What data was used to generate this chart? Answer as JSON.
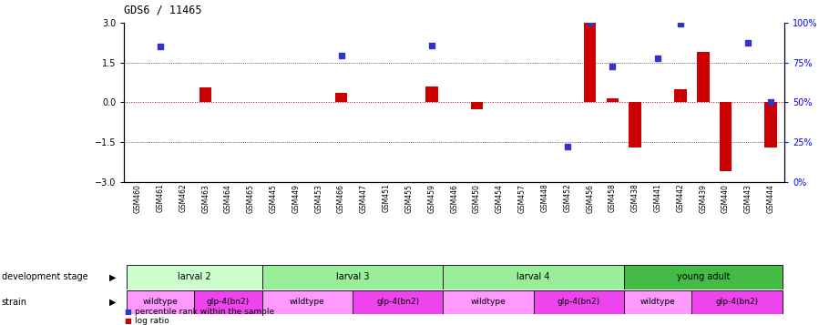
{
  "title": "GDS6 / 11465",
  "samples": [
    "GSM460",
    "GSM461",
    "GSM462",
    "GSM463",
    "GSM464",
    "GSM465",
    "GSM445",
    "GSM449",
    "GSM453",
    "GSM466",
    "GSM447",
    "GSM451",
    "GSM455",
    "GSM459",
    "GSM446",
    "GSM450",
    "GSM454",
    "GSM457",
    "GSM448",
    "GSM452",
    "GSM456",
    "GSM458",
    "GSM438",
    "GSM441",
    "GSM442",
    "GSM439",
    "GSM440",
    "GSM443",
    "GSM444"
  ],
  "log_ratio": [
    0,
    0,
    0,
    0.55,
    0,
    0,
    0,
    0,
    0,
    0.35,
    0,
    0,
    0,
    0.6,
    0,
    -0.25,
    0,
    0,
    0,
    0,
    3.0,
    0.15,
    -1.7,
    0,
    0.5,
    1.9,
    -2.6,
    0,
    -1.7
  ],
  "percentile_y": [
    null,
    2.1,
    null,
    null,
    null,
    null,
    null,
    null,
    null,
    1.75,
    null,
    null,
    null,
    2.15,
    null,
    null,
    null,
    null,
    null,
    -1.65,
    3.0,
    1.35,
    null,
    1.65,
    2.95,
    null,
    null,
    2.25,
    0.0
  ],
  "ylim": [
    -3,
    3
  ],
  "yticks_left": [
    -3,
    -1.5,
    0,
    1.5,
    3
  ],
  "yticks_right_pct": [
    0,
    25,
    50,
    75,
    100
  ],
  "bar_color": "#cc0000",
  "dot_color": "#3333cc",
  "hline_color": "#cc0000",
  "dev_groups": [
    {
      "label": "larval 2",
      "start": 0,
      "end": 5,
      "color": "#ccffcc"
    },
    {
      "label": "larval 3",
      "start": 6,
      "end": 13,
      "color": "#99ee99"
    },
    {
      "label": "larval 4",
      "start": 14,
      "end": 21,
      "color": "#99ee99"
    },
    {
      "label": "young adult",
      "start": 22,
      "end": 28,
      "color": "#44bb44"
    }
  ],
  "strain_groups": [
    {
      "label": "wildtype",
      "start": 0,
      "end": 2,
      "color": "#ff99ff"
    },
    {
      "label": "glp-4(bn2)",
      "start": 3,
      "end": 5,
      "color": "#ee44ee"
    },
    {
      "label": "wildtype",
      "start": 6,
      "end": 9,
      "color": "#ff99ff"
    },
    {
      "label": "glp-4(bn2)",
      "start": 10,
      "end": 13,
      "color": "#ee44ee"
    },
    {
      "label": "wildtype",
      "start": 14,
      "end": 17,
      "color": "#ff99ff"
    },
    {
      "label": "glp-4(bn2)",
      "start": 18,
      "end": 21,
      "color": "#ee44ee"
    },
    {
      "label": "wildtype",
      "start": 22,
      "end": 24,
      "color": "#ff99ff"
    },
    {
      "label": "glp-4(bn2)",
      "start": 25,
      "end": 28,
      "color": "#ee44ee"
    }
  ]
}
